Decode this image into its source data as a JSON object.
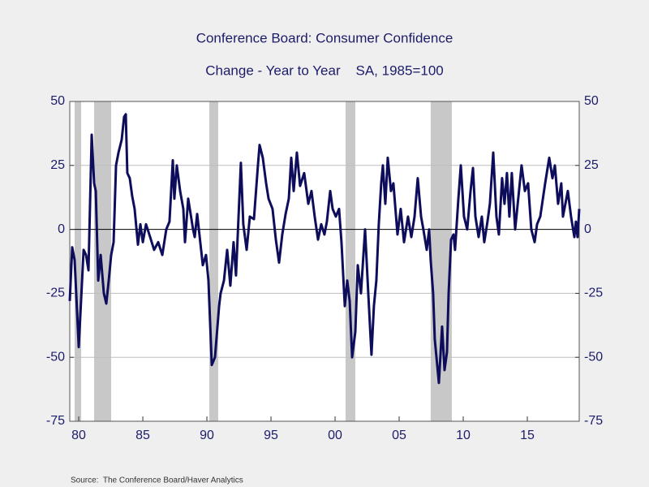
{
  "chart_data": {
    "type": "line",
    "title": "Conference Board: Consumer Confidence",
    "subtitle": "Change - Year to Year    SA, 1985=100",
    "source": "Source:  The Conference Board/Haver Analytics",
    "color": "#0d0d5c",
    "shade_color": "#c8c8c8",
    "shaded_periods": [
      [
        1979.68,
        1980.19
      ],
      [
        1981.2,
        1982.53
      ],
      [
        1990.19,
        1990.88
      ],
      [
        2000.82,
        2001.58
      ],
      [
        2007.46,
        2009.11
      ]
    ],
    "x": [
      1979.3,
      1979.49,
      1979.68,
      1980.0,
      1980.38,
      1980.57,
      1980.76,
      1981.01,
      1981.2,
      1981.33,
      1981.52,
      1981.71,
      1981.96,
      1982.15,
      1982.34,
      1982.53,
      1982.72,
      1982.91,
      1983.1,
      1983.35,
      1983.54,
      1983.67,
      1983.79,
      1983.98,
      1984.17,
      1984.36,
      1984.62,
      1984.81,
      1985.0,
      1985.25,
      1985.57,
      1985.88,
      1986.2,
      1986.52,
      1986.83,
      1987.08,
      1987.34,
      1987.46,
      1987.65,
      1987.91,
      1988.16,
      1988.29,
      1988.54,
      1988.92,
      1989.05,
      1989.24,
      1989.68,
      1989.93,
      1990.12,
      1990.38,
      1990.63,
      1990.95,
      1991.07,
      1991.33,
      1991.58,
      1991.83,
      1992.08,
      1992.27,
      1992.65,
      1992.84,
      1993.1,
      1993.35,
      1993.67,
      1993.98,
      1994.11,
      1994.36,
      1994.62,
      1994.81,
      1995.12,
      1995.38,
      1995.63,
      1995.88,
      1996.14,
      1996.39,
      1996.58,
      1996.77,
      1997.02,
      1997.27,
      1997.59,
      1997.91,
      1998.16,
      1998.41,
      1998.67,
      1998.92,
      1999.17,
      1999.36,
      1999.62,
      1999.81,
      2000.06,
      2000.31,
      2000.5,
      2000.76,
      2000.95,
      2001.14,
      2001.33,
      2001.58,
      2001.77,
      2002.02,
      2002.34,
      2002.59,
      2002.84,
      2003.03,
      2003.22,
      2003.41,
      2003.6,
      2003.73,
      2003.92,
      2004.11,
      2004.36,
      2004.55,
      2004.87,
      2005.12,
      2005.38,
      2005.69,
      2005.95,
      2006.2,
      2006.45,
      2006.71,
      2006.89,
      2007.15,
      2007.34,
      2007.46,
      2007.65,
      2007.78,
      2008.1,
      2008.35,
      2008.54,
      2008.73,
      2008.86,
      2009.05,
      2009.24,
      2009.36,
      2009.62,
      2009.81,
      2010.06,
      2010.31,
      2010.57,
      2010.76,
      2010.95,
      2011.2,
      2011.45,
      2011.64,
      2011.89,
      2012.08,
      2012.34,
      2012.59,
      2012.78,
      2013.03,
      2013.22,
      2013.41,
      2013.6,
      2013.79,
      2014.05,
      2014.55,
      2014.81,
      2015.06,
      2015.31,
      2015.57,
      2015.76,
      2016.01,
      2016.39,
      2016.71,
      2016.96,
      2017.15,
      2017.4,
      2017.65,
      2017.78,
      2018.16,
      2018.41,
      2018.67,
      2018.79,
      2018.92,
      2019.05
    ],
    "values": [
      -28,
      -7,
      -12,
      -46,
      -8,
      -10,
      -16,
      37,
      18,
      15,
      -20,
      -10,
      -25,
      -29,
      -20,
      -10,
      -5,
      25,
      30,
      35,
      44,
      45,
      22,
      20,
      13,
      8,
      -6,
      2,
      -5,
      2,
      -3,
      -8,
      -5,
      -10,
      0,
      3,
      27,
      12,
      25,
      15,
      8,
      -5,
      12,
      0,
      -3,
      6,
      -14,
      -10,
      -20,
      -53,
      -50,
      -30,
      -25,
      -20,
      -8,
      -22,
      -5,
      -18,
      26,
      2,
      -8,
      5,
      4,
      25,
      33,
      28,
      18,
      12,
      8,
      -4,
      -13,
      -2,
      6,
      12,
      28,
      15,
      30,
      17,
      22,
      10,
      15,
      5,
      -4,
      2,
      -2,
      3,
      15,
      8,
      5,
      8,
      -5,
      -30,
      -20,
      -28,
      -50,
      -40,
      -14,
      -25,
      0,
      -25,
      -49,
      -30,
      -20,
      2,
      18,
      25,
      10,
      28,
      15,
      18,
      -2,
      8,
      -5,
      5,
      -3,
      5,
      20,
      5,
      0,
      -8,
      0,
      -12,
      -25,
      -43,
      -60,
      -38,
      -55,
      -48,
      -25,
      -4,
      -2,
      -8,
      12,
      25,
      5,
      0,
      15,
      24,
      5,
      -3,
      5,
      -5,
      3,
      10,
      30,
      5,
      -2,
      20,
      10,
      22,
      5,
      22,
      0,
      25,
      15,
      18,
      0,
      -5,
      2,
      5,
      18,
      28,
      20,
      25,
      10,
      18,
      5,
      15,
      5,
      -3,
      3,
      -3,
      8
    ],
    "xlim": [
      1979.3,
      2019.05
    ],
    "xticks": [
      {
        "value": 1980,
        "label": "80"
      },
      {
        "value": 1985,
        "label": "85"
      },
      {
        "value": 1990,
        "label": "90"
      },
      {
        "value": 1995,
        "label": "95"
      },
      {
        "value": 2000,
        "label": "00"
      },
      {
        "value": 2005,
        "label": "05"
      },
      {
        "value": 2010,
        "label": "10"
      },
      {
        "value": 2015,
        "label": "15"
      }
    ],
    "ylim": [
      -75,
      50
    ],
    "yticks": [
      -75,
      -50,
      -25,
      0,
      25,
      50
    ],
    "y2lim": [
      -75,
      50
    ],
    "y2ticks": [
      -75,
      -50,
      -25,
      0,
      25,
      50
    ],
    "grid": true
  }
}
